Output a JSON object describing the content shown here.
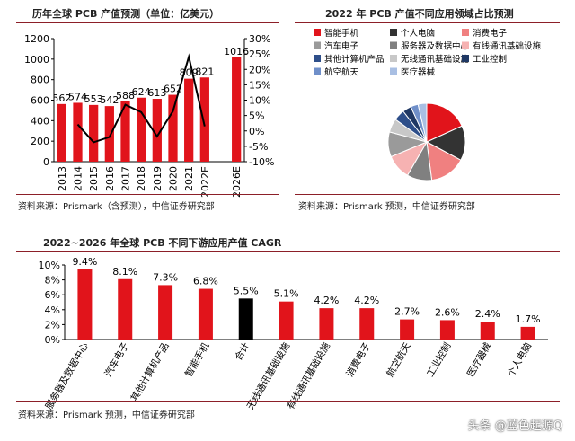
{
  "panels": {
    "p1": {
      "title": "历年全球 PCB 产值预测（单位：亿美元）",
      "source": "资料来源：Prismark（含预测），中信证券研究部"
    },
    "p2": {
      "title": "2022 年 PCB 产值不同应用领域占比预测",
      "source": "资料来源：Prismark 预测，中信证券研究部"
    },
    "p3": {
      "title": "2022~2026 年全球 PCB 不同下游应用产值 CAGR",
      "source": "资料来源：Prismark 预测，中信证券研究部"
    }
  },
  "watermark": "头条 @蓝色起源Q",
  "colors": {
    "red": "#e1141b",
    "black": "#000000",
    "rule": "#8c1f28"
  },
  "chart_data": [
    {
      "type": "bar",
      "title": "历年全球 PCB 产值预测（单位：亿美元）",
      "categories": [
        "2013",
        "2014",
        "2015",
        "2016",
        "2017",
        "2018",
        "2019",
        "2020",
        "2021",
        "2022E",
        "2026E"
      ],
      "ylim": [
        0,
        1200
      ],
      "yticks": [
        "0",
        "200",
        "400",
        "600",
        "800",
        "1000",
        "1200"
      ],
      "y2lim": [
        -10,
        30
      ],
      "y2ticks": [
        "-10%",
        "-5%",
        "0%",
        "5%",
        "10%",
        "15%",
        "20%",
        "25%",
        "30%"
      ],
      "series": [
        {
          "type": "bar",
          "values": [
            562,
            574,
            553,
            542,
            588,
            624,
            613,
            652,
            809,
            821,
            1016
          ],
          "labels": [
            "562",
            "574",
            "553",
            "542",
            "588",
            "624",
            "613",
            "652",
            "809",
            "821",
            "1016"
          ]
        },
        {
          "type": "line",
          "axis": "y2",
          "values": [
            null,
            2.1,
            -3.7,
            -2.0,
            8.5,
            6.1,
            -1.8,
            6.4,
            24.1,
            1.5,
            null
          ]
        }
      ]
    },
    {
      "type": "pie",
      "title": "2022 年 PCB 产值不同应用领域占比预测",
      "slices": [
        {
          "label": "智能手机",
          "value": 17.5,
          "color": "#e1141b"
        },
        {
          "label": "个人电脑",
          "value": 14.0,
          "color": "#333333"
        },
        {
          "label": "消费电子",
          "value": 14.5,
          "color": "#f08080"
        },
        {
          "label": "服务器及数据中心",
          "value": 10.0,
          "color": "#808080"
        },
        {
          "label": "有线通讯基础设施",
          "value": 10.0,
          "color": "#f6b2b2"
        },
        {
          "label": "汽车电子",
          "value": 10.0,
          "color": "#9a9a9a"
        },
        {
          "label": "无线通讯基础设施",
          "value": 5.5,
          "color": "#c8c8c8"
        },
        {
          "label": "其他计算机产品",
          "value": 4.5,
          "color": "#2e4f8a"
        },
        {
          "label": "工业控制",
          "value": 3.5,
          "color": "#1f3864"
        },
        {
          "label": "航空航天",
          "value": 3.0,
          "color": "#6f8fc9"
        },
        {
          "label": "医疗器械",
          "value": 3.5,
          "color": "#a9bfe3"
        }
      ],
      "legend_order": [
        "智能手机",
        "个人电脑",
        "消费电子",
        "汽车电子",
        "服务器及数据中心",
        "有线通讯基础设施",
        "其他计算机产品",
        "无线通讯基础设施",
        "工业控制",
        "航空航天",
        "医疗器械"
      ]
    },
    {
      "type": "bar",
      "title": "2022~2026 年全球 PCB 不同下游应用产值 CAGR",
      "categories": [
        "服务器及数据中心",
        "汽车电子",
        "其他计算机产品",
        "智能手机",
        "合计",
        "无线通讯基础设施",
        "有线通讯基础设施",
        "消费电子",
        "航空航天",
        "工业控制",
        "医疗器械",
        "个人电脑"
      ],
      "values": [
        9.4,
        8.1,
        7.3,
        6.8,
        5.5,
        5.1,
        4.2,
        4.2,
        2.7,
        2.6,
        2.4,
        1.7
      ],
      "labels": [
        "9.4%",
        "8.1%",
        "7.3%",
        "6.8%",
        "5.5%",
        "5.1%",
        "4.2%",
        "4.2%",
        "2.7%",
        "2.6%",
        "2.4%",
        "1.7%"
      ],
      "highlight": "合计",
      "ylim": [
        0,
        10
      ],
      "yticks": [
        "0%",
        "2%",
        "4%",
        "6%",
        "8%",
        "10%"
      ]
    }
  ]
}
